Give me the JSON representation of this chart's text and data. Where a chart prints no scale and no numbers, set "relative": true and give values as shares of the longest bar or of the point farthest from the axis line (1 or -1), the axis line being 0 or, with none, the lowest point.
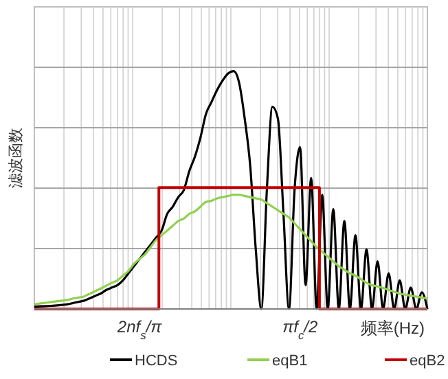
{
  "chart_data": {
    "type": "line",
    "relative": true,
    "grid": true,
    "legend": "bottom",
    "ylabel": "滤波函数",
    "xlabel": "频率(Hz)",
    "categories": [
      null,
      null,
      null,
      null,
      null,
      null,
      null,
      null,
      null,
      null,
      null,
      null,
      null,
      null,
      null,
      null,
      null,
      null,
      null,
      "2nf$_{s}$/π",
      null,
      null,
      null,
      null,
      null,
      null,
      null,
      null,
      null,
      null,
      null,
      null,
      null,
      null,
      null,
      null,
      null,
      null,
      null,
      null,
      null,
      null,
      null,
      null,
      null,
      null,
      null,
      null,
      "πf$_{c}$/2",
      null,
      null,
      null,
      null,
      null,
      null,
      null,
      null,
      null,
      null,
      null,
      null,
      null,
      null,
      null,
      null,
      null,
      null,
      null,
      null,
      null,
      null,
      null
    ],
    "series": [
      {
        "name": "HCDS",
        "color": "#000000",
        "values": [
          0.01,
          0.011,
          0.012,
          0.013,
          0.015,
          0.017,
          0.02,
          0.025,
          0.03,
          0.035,
          0.045,
          0.055,
          0.065,
          0.08,
          0.09,
          0.1,
          0.12,
          0.15,
          0.18,
          0.21,
          0.24,
          0.27,
          0.3,
          0.33,
          0.4,
          0.43,
          0.47,
          0.5,
          0.58,
          0.64,
          0.72,
          0.82,
          0.87,
          0.92,
          0.96,
          0.99,
          1,
          0.95,
          0.8,
          0.6,
          0.25,
          0,
          0.5,
          0.85,
          0.8,
          0.4,
          0,
          0.5,
          0.68,
          0.1,
          0.55,
          0,
          0.48,
          0,
          0.42,
          0,
          0.37,
          0,
          0.31,
          0,
          0.25,
          0,
          0.2,
          0,
          0.15,
          0,
          0.12,
          0,
          0.09,
          0,
          0.07,
          0
        ]
      },
      {
        "name": "eqB1",
        "color": "#92d050",
        "values": [
          0.02,
          0.023,
          0.026,
          0.029,
          0.032,
          0.035,
          0.038,
          0.044,
          0.048,
          0.053,
          0.064,
          0.075,
          0.086,
          0.098,
          0.11,
          0.12,
          0.14,
          0.16,
          0.19,
          0.21,
          0.23,
          0.26,
          0.29,
          0.31,
          0.33,
          0.35,
          0.37,
          0.38,
          0.4,
          0.41,
          0.43,
          0.45,
          0.455,
          0.465,
          0.47,
          0.475,
          0.48,
          0.48,
          0.475,
          0.47,
          0.465,
          0.46,
          0.445,
          0.43,
          0.415,
          0.4,
          0.385,
          0.36,
          0.335,
          0.31,
          0.285,
          0.26,
          0.24,
          0.22,
          0.2,
          0.18,
          0.165,
          0.15,
          0.14,
          0.125,
          0.11,
          0.1,
          0.095,
          0.088,
          0.08,
          0.072,
          0.065,
          0.06,
          0.056,
          0.052,
          0.048,
          0.044
        ]
      },
      {
        "name": "eqB2",
        "color": "#c00000",
        "type": "step",
        "values": [
          0,
          0,
          0,
          0,
          0,
          0,
          0,
          0,
          0,
          0,
          0,
          0,
          0,
          0,
          0,
          0,
          0,
          0,
          0,
          0,
          0,
          0,
          0,
          0.51,
          0.51,
          0.51,
          0.51,
          0.51,
          0.51,
          0.51,
          0.51,
          0.51,
          0.51,
          0.51,
          0.51,
          0.51,
          0.51,
          0.51,
          0.51,
          0.51,
          0.51,
          0.51,
          0.51,
          0.51,
          0.51,
          0.51,
          0.51,
          0.51,
          0.51,
          0.51,
          0.51,
          0.51,
          0,
          0,
          0,
          0,
          0,
          0,
          0,
          0,
          0,
          0,
          0,
          0,
          0,
          0,
          0,
          0,
          0,
          0,
          0,
          0
        ]
      }
    ]
  }
}
